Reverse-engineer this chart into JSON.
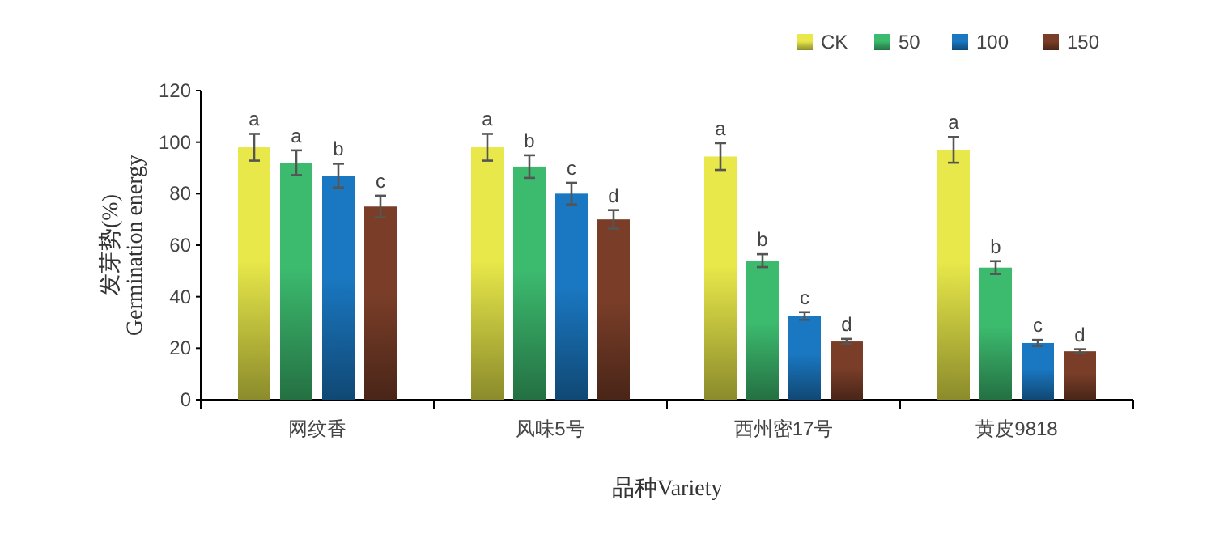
{
  "chart_data": {
    "type": "bar",
    "xlabel": "品种Variety",
    "ylabel": "发芽势(%)\nGermination energy",
    "categories": [
      "网纹香",
      "风味5号",
      "西州密17号",
      "黄皮9818"
    ],
    "series": [
      {
        "name": "CK",
        "color": "#e8e84a",
        "values": [
          98,
          98,
          94.4,
          97
        ],
        "errors": [
          5.2,
          5.2,
          5.2,
          5
        ],
        "value_labels": [
          "a",
          "a",
          "a",
          "a"
        ]
      },
      {
        "name": "50",
        "color": "#3cba6e",
        "values": [
          92,
          90.5,
          54,
          51.3
        ],
        "errors": [
          4.8,
          4.4,
          2.5,
          2.5
        ],
        "value_labels": [
          "a",
          "b",
          "b",
          "b"
        ]
      },
      {
        "name": "100",
        "color": "#1a78c2",
        "values": [
          87,
          80,
          32.5,
          22
        ],
        "errors": [
          4.6,
          4.2,
          1.5,
          1.2
        ],
        "value_labels": [
          "b",
          "c",
          "c",
          "c"
        ]
      },
      {
        "name": "150",
        "color": "#7a3e28",
        "values": [
          75,
          70,
          22.6,
          18.8
        ],
        "errors": [
          4.2,
          3.6,
          1,
          0.8
        ],
        "value_labels": [
          "c",
          "d",
          "d",
          "d"
        ]
      }
    ],
    "ylim": [
      0,
      120
    ],
    "yticks": [
      0,
      20,
      40,
      60,
      80,
      100,
      120
    ],
    "grid": false,
    "legend": "top right"
  }
}
